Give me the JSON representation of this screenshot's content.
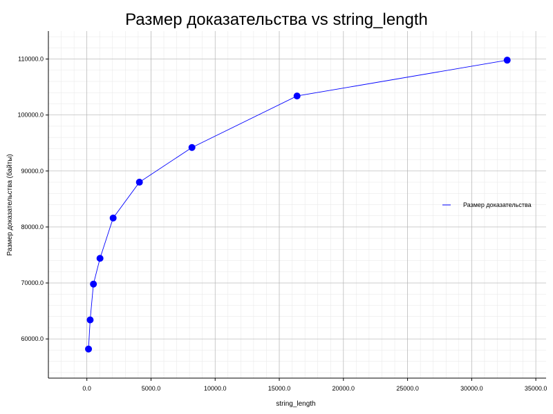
{
  "chart_data": {
    "type": "line",
    "title": "Размер доказательства vs string_length",
    "xlabel": "string_length",
    "ylabel": "Размер доказательства (байты)",
    "xlim": [
      -3000,
      35800
    ],
    "ylim": [
      53000,
      115000
    ],
    "x_ticks": [
      0,
      5000,
      10000,
      15000,
      20000,
      25000,
      30000,
      35000
    ],
    "x_tick_labels": [
      "0.0",
      "5000.0",
      "10000.0",
      "15000.0",
      "20000.0",
      "25000.0",
      "30000.0",
      "35000.0"
    ],
    "y_ticks": [
      60000,
      70000,
      80000,
      90000,
      100000,
      110000
    ],
    "y_tick_labels": [
      "60000.0",
      "70000.0",
      "80000.0",
      "90000.0",
      "100000.0",
      "110000.0"
    ],
    "x_minor_step": 1000,
    "y_minor_step": 2000,
    "grid": true,
    "legend_position": "right",
    "series": [
      {
        "name": "Размер доказательства",
        "color": "#0000ff",
        "marker": "circle",
        "x": [
          128,
          256,
          512,
          1024,
          2048,
          4096,
          8192,
          16384,
          32768
        ],
        "y": [
          58200,
          63400,
          69800,
          74400,
          81600,
          88000,
          94200,
          103400,
          109800
        ]
      }
    ]
  }
}
